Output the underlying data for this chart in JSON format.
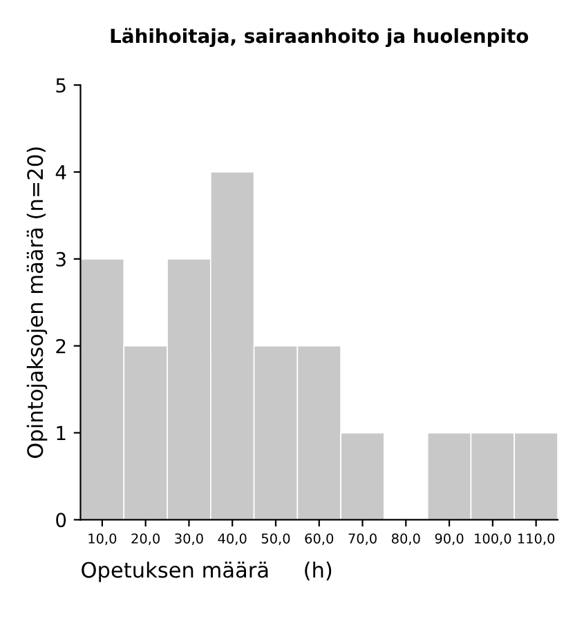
{
  "chart_data": {
    "type": "histogram",
    "title": "Lähihoitaja, sairaanhoito ja huolenpito",
    "xlabel": "Opetuksen määrä     (h)",
    "ylabel": "Opintojaksojen määrä (n=20)",
    "bins": [
      5,
      15,
      25,
      35,
      45,
      55,
      65,
      75,
      85,
      95,
      105,
      115
    ],
    "values": [
      3,
      2,
      3,
      4,
      2,
      2,
      1,
      0,
      1,
      1,
      1
    ],
    "color": "#c8c8c8",
    "xlim": [
      5,
      115
    ],
    "ylim": [
      0,
      5
    ],
    "xticks": [
      {
        "value": 10,
        "label": "10,0"
      },
      {
        "value": 20,
        "label": "20,0"
      },
      {
        "value": 30,
        "label": "30,0"
      },
      {
        "value": 40,
        "label": "40,0"
      },
      {
        "value": 50,
        "label": "50,0"
      },
      {
        "value": 60,
        "label": "60,0"
      },
      {
        "value": 70,
        "label": "70,0"
      },
      {
        "value": 80,
        "label": "80,0"
      },
      {
        "value": 90,
        "label": "90,0"
      },
      {
        "value": 100,
        "label": "100,0"
      },
      {
        "value": 110,
        "label": "110,0"
      }
    ],
    "yticks": [
      0,
      1,
      2,
      3,
      4,
      5
    ],
    "grid": false,
    "legend": false
  }
}
